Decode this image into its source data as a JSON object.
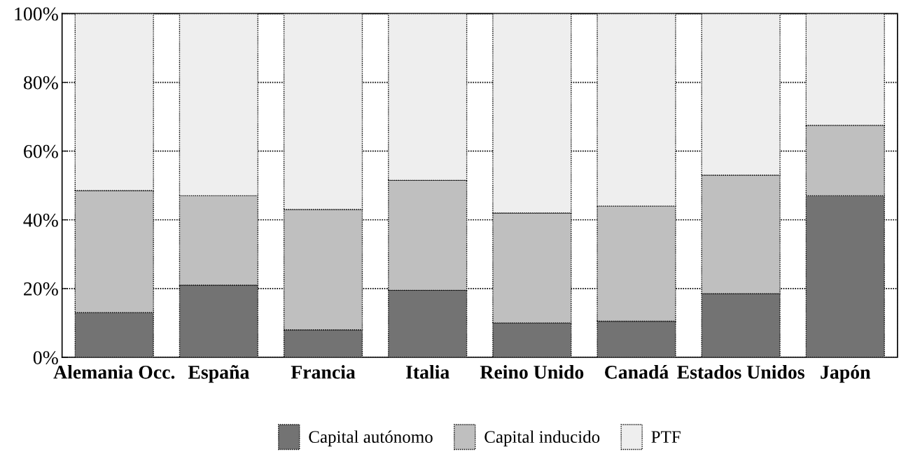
{
  "chart_data": {
    "type": "bar",
    "stacked": true,
    "categories": [
      "Alemania Occ.",
      "España",
      "Francia",
      "Italia",
      "Reino Unido",
      "Canadá",
      "Estados Unidos",
      "Japón"
    ],
    "series": [
      {
        "name": "Capital autónomo",
        "color": "#737373",
        "values": [
          13,
          21,
          8,
          19.5,
          10,
          10.5,
          18.5,
          47
        ]
      },
      {
        "name": "Capital inducido",
        "color": "#bfbfbf",
        "values": [
          35.5,
          26,
          35,
          32,
          32,
          33.5,
          34.5,
          20.5
        ]
      },
      {
        "name": "PTF",
        "color": "#eeeeee",
        "values": [
          51.5,
          53,
          57,
          48.5,
          58,
          56,
          47,
          32.5
        ]
      }
    ],
    "ylim": [
      0,
      100
    ],
    "yticks": [
      {
        "value": 0,
        "label": "0%"
      },
      {
        "value": 20,
        "label": "20%"
      },
      {
        "value": 40,
        "label": "40%"
      },
      {
        "value": 60,
        "label": "60%"
      },
      {
        "value": 80,
        "label": "80%"
      },
      {
        "value": 100,
        "label": "100%"
      }
    ],
    "grid": "y",
    "legend": "bottom"
  }
}
